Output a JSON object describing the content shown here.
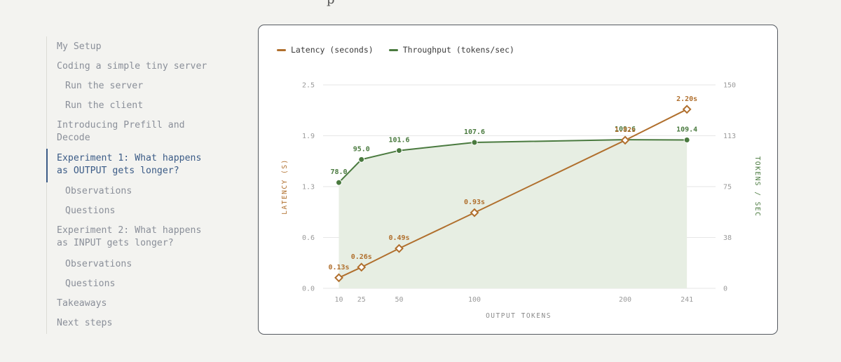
{
  "toc": {
    "items": [
      {
        "label": "My Setup",
        "level": 0,
        "active": false
      },
      {
        "label": "Coding a simple tiny server",
        "level": 0,
        "active": false
      },
      {
        "label": "Run the server",
        "level": 1,
        "active": false
      },
      {
        "label": "Run the client",
        "level": 1,
        "active": false
      },
      {
        "label": "Introducing Prefill and Decode",
        "level": 0,
        "active": false
      },
      {
        "label": "Experiment 1: What happens as OUTPUT gets longer?",
        "level": 0,
        "active": true
      },
      {
        "label": "Observations",
        "level": 1,
        "active": false
      },
      {
        "label": "Questions",
        "level": 1,
        "active": false
      },
      {
        "label": "Experiment 2: What happens as INPUT gets longer?",
        "level": 0,
        "active": false
      },
      {
        "label": "Observations",
        "level": 1,
        "active": false
      },
      {
        "label": "Questions",
        "level": 1,
        "active": false
      },
      {
        "label": "Takeaways",
        "level": 0,
        "active": false
      },
      {
        "label": "Next steps",
        "level": 0,
        "active": false
      }
    ]
  },
  "colors": {
    "latency": "#b06f2d",
    "throughput": "#4a7a3f",
    "throughput_fill": "#e7eee3",
    "active_link": "#3b5b86",
    "grid": "#e6e6e6"
  },
  "chart_data": {
    "type": "line",
    "x_scale": "linear",
    "xlabel": "OUTPUT TOKENS",
    "x_ticks": [
      10,
      25,
      50,
      100,
      200,
      241
    ],
    "x_range": [
      0,
      241
    ],
    "y_left": {
      "label": "LATENCY (S)",
      "ticks": [
        "0.0",
        "0.6",
        "1.3",
        "1.9",
        "2.5"
      ],
      "range": [
        0,
        2.5
      ]
    },
    "y_right": {
      "label": "TOKENS / SEC",
      "ticks": [
        "0",
        "38",
        "75",
        "113",
        "150"
      ],
      "range": [
        0,
        150
      ]
    },
    "legend_position": "top-left",
    "grid": true,
    "series": [
      {
        "name": "Latency (seconds)",
        "axis": "left",
        "marker": "diamond-open",
        "x": [
          10,
          25,
          50,
          100,
          200,
          241
        ],
        "values": [
          0.13,
          0.26,
          0.49,
          0.93,
          1.82,
          2.2
        ],
        "labels": [
          "0.13s",
          "0.26s",
          "0.49s",
          "0.93s",
          "1.82s",
          "2.20s"
        ]
      },
      {
        "name": "Throughput (tokens/sec)",
        "axis": "right",
        "marker": "circle-filled",
        "area_fill": true,
        "x": [
          10,
          25,
          50,
          100,
          200,
          241
        ],
        "values": [
          78.0,
          95.0,
          101.6,
          107.6,
          109.6,
          109.4
        ],
        "labels": [
          "78.0",
          "95.0",
          "101.6",
          "107.6",
          "109.6",
          "109.4"
        ]
      }
    ]
  }
}
